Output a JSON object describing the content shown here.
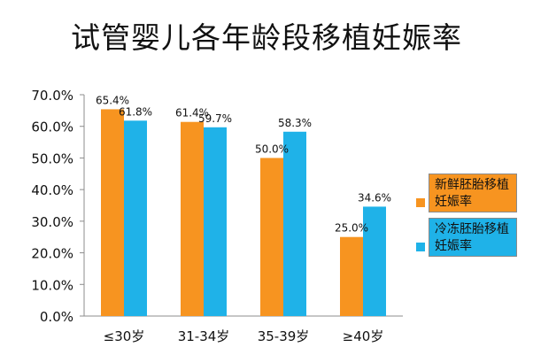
{
  "chart_data": {
    "type": "bar",
    "title": "试管婴儿各年龄段移植妊娠率",
    "categories": [
      "≤30岁",
      "31-34岁",
      "35-39岁",
      "≥40岁"
    ],
    "series": [
      {
        "name": "新鲜胚胎移植妊娠率",
        "values": [
          65.4,
          61.4,
          50.0,
          25.0
        ],
        "labels": [
          "65.4%",
          "61.4%",
          "50.0%",
          "25.0%"
        ],
        "color": "#F79420"
      },
      {
        "name": "冷冻胚胎移植妊娠率",
        "values": [
          61.8,
          59.7,
          58.3,
          34.6
        ],
        "labels": [
          "61.8%",
          "59.7%",
          "58.3%",
          "34.6%"
        ],
        "color": "#1FB2E8"
      }
    ],
    "ylim": [
      0,
      70
    ],
    "yticks": [
      "0.0%",
      "10.0%",
      "20.0%",
      "30.0%",
      "40.0%",
      "50.0%",
      "60.0%",
      "70.0%"
    ],
    "grid": false,
    "legend": "right"
  }
}
